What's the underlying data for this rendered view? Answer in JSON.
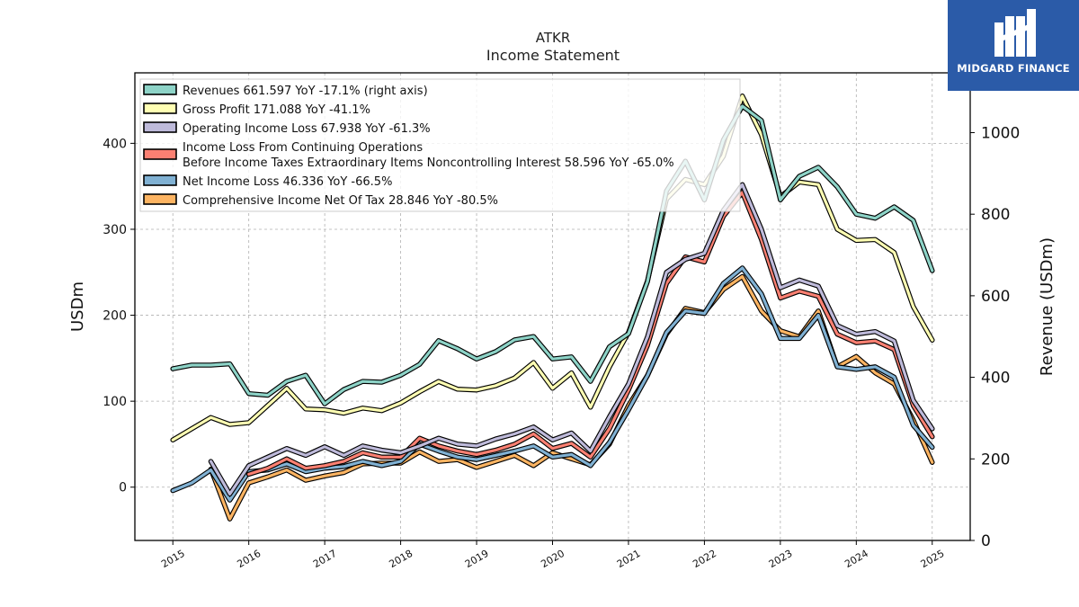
{
  "brand": {
    "logo_text": "MIDGARD FINANCE"
  },
  "chart_data": {
    "type": "line",
    "ticker": "ATKR",
    "title": "Income Statement",
    "ylabel_left": "USDm",
    "ylabel_right": "Revenue (USDm)",
    "grid": true,
    "legend_position": "top-left",
    "ylim_left": [
      -62,
      482
    ],
    "ylim_right": [
      0,
      1146.6
    ],
    "yticks_left": [
      0,
      100,
      200,
      300,
      400
    ],
    "yticks_right": [
      0,
      200,
      400,
      600,
      800,
      1000
    ],
    "x_ticks": [
      "2015",
      "2016",
      "2017",
      "2018",
      "2019",
      "2020",
      "2021",
      "2022",
      "2023",
      "2024",
      "2025"
    ],
    "x_start_year": 2015,
    "xlim_years": [
      2014.5,
      2025.5
    ],
    "series": [
      {
        "name": "Revenues",
        "legend": "Revenues  661.597 YoY -17.1% (right axis)",
        "axis": "right",
        "color": "#8dd3c7",
        "points": [
          [
            2015.0,
            421
          ],
          [
            2015.25,
            430
          ],
          [
            2015.5,
            430
          ],
          [
            2015.75,
            433
          ],
          [
            2016.0,
            360
          ],
          [
            2016.25,
            356
          ],
          [
            2016.5,
            390
          ],
          [
            2016.75,
            405
          ],
          [
            2017.0,
            335
          ],
          [
            2017.25,
            370
          ],
          [
            2017.5,
            390
          ],
          [
            2017.75,
            388
          ],
          [
            2018.0,
            405
          ],
          [
            2018.25,
            432
          ],
          [
            2018.5,
            490
          ],
          [
            2018.75,
            470
          ],
          [
            2019.0,
            445
          ],
          [
            2019.25,
            463
          ],
          [
            2019.5,
            492
          ],
          [
            2019.75,
            500
          ],
          [
            2020.0,
            445
          ],
          [
            2020.25,
            450
          ],
          [
            2020.5,
            390
          ],
          [
            2020.75,
            475
          ],
          [
            2021.0,
            507
          ],
          [
            2021.25,
            635
          ],
          [
            2021.5,
            857
          ],
          [
            2021.75,
            930
          ],
          [
            2022.0,
            835
          ],
          [
            2022.25,
            982
          ],
          [
            2022.5,
            1065
          ],
          [
            2022.75,
            1030
          ],
          [
            2023.0,
            835
          ],
          [
            2023.25,
            893
          ],
          [
            2023.5,
            915
          ],
          [
            2023.75,
            867
          ],
          [
            2024.0,
            800
          ],
          [
            2024.25,
            790
          ],
          [
            2024.5,
            818
          ],
          [
            2024.75,
            785
          ],
          [
            2025.0,
            661.597
          ]
        ]
      },
      {
        "name": "Gross Profit",
        "legend": "Gross Profit  171.088 YoY -41.1%",
        "axis": "left",
        "color": "#ffffb3",
        "points": [
          [
            2015.0,
            55
          ],
          [
            2015.25,
            68
          ],
          [
            2015.5,
            81
          ],
          [
            2015.75,
            73
          ],
          [
            2016.0,
            75
          ],
          [
            2016.25,
            95
          ],
          [
            2016.5,
            115
          ],
          [
            2016.75,
            91
          ],
          [
            2017.0,
            90
          ],
          [
            2017.25,
            86
          ],
          [
            2017.5,
            92
          ],
          [
            2017.75,
            89
          ],
          [
            2018.0,
            98
          ],
          [
            2018.25,
            111
          ],
          [
            2018.5,
            123
          ],
          [
            2018.75,
            114
          ],
          [
            2019.0,
            113
          ],
          [
            2019.25,
            118
          ],
          [
            2019.5,
            127
          ],
          [
            2019.75,
            145
          ],
          [
            2020.0,
            115
          ],
          [
            2020.25,
            133
          ],
          [
            2020.5,
            93
          ],
          [
            2020.75,
            140
          ],
          [
            2021.0,
            180
          ],
          [
            2021.25,
            240
          ],
          [
            2021.5,
            335
          ],
          [
            2021.75,
            358
          ],
          [
            2022.0,
            352
          ],
          [
            2022.25,
            385
          ],
          [
            2022.5,
            455
          ],
          [
            2022.75,
            410
          ],
          [
            2023.0,
            338
          ],
          [
            2023.25,
            355
          ],
          [
            2023.5,
            352
          ],
          [
            2023.75,
            300
          ],
          [
            2024.0,
            287
          ],
          [
            2024.25,
            288
          ],
          [
            2024.5,
            273
          ],
          [
            2024.75,
            210
          ],
          [
            2025.0,
            171.088
          ]
        ]
      },
      {
        "name": "Operating Income Loss",
        "legend": "Operating Income Loss  67.938 YoY -61.3%",
        "axis": "left",
        "color": "#bebada",
        "points": [
          [
            2015.5,
            30
          ],
          [
            2015.75,
            -8
          ],
          [
            2016.0,
            25
          ],
          [
            2016.25,
            35
          ],
          [
            2016.5,
            45
          ],
          [
            2016.75,
            37
          ],
          [
            2017.0,
            47
          ],
          [
            2017.25,
            37
          ],
          [
            2017.5,
            48
          ],
          [
            2017.75,
            43
          ],
          [
            2018.0,
            40
          ],
          [
            2018.25,
            48
          ],
          [
            2018.5,
            57
          ],
          [
            2018.75,
            50
          ],
          [
            2019.0,
            48
          ],
          [
            2019.25,
            56
          ],
          [
            2019.5,
            62
          ],
          [
            2019.75,
            70
          ],
          [
            2020.0,
            55
          ],
          [
            2020.25,
            63
          ],
          [
            2020.5,
            42
          ],
          [
            2020.75,
            82
          ],
          [
            2021.0,
            120
          ],
          [
            2021.25,
            175
          ],
          [
            2021.5,
            250
          ],
          [
            2021.75,
            265
          ],
          [
            2022.0,
            272
          ],
          [
            2022.25,
            322
          ],
          [
            2022.5,
            352
          ],
          [
            2022.75,
            300
          ],
          [
            2023.0,
            232
          ],
          [
            2023.25,
            241
          ],
          [
            2023.5,
            234
          ],
          [
            2023.75,
            188
          ],
          [
            2024.0,
            178
          ],
          [
            2024.25,
            181
          ],
          [
            2024.5,
            170
          ],
          [
            2024.75,
            101
          ],
          [
            2025.0,
            67.938
          ]
        ]
      },
      {
        "name": "Income Loss From Continuing Operations Before Income Taxes Extraordinary Items Noncontrolling Interest",
        "legend": "Income Loss From Continuing Operations\nBefore Income Taxes Extraordinary Items Noncontrolling Interest  58.596 YoY -65.0%",
        "axis": "left",
        "color": "#fb8072",
        "points": [
          [
            2016.0,
            15
          ],
          [
            2016.25,
            22
          ],
          [
            2016.5,
            33
          ],
          [
            2016.75,
            22
          ],
          [
            2017.0,
            25
          ],
          [
            2017.25,
            30
          ],
          [
            2017.5,
            40
          ],
          [
            2017.75,
            35
          ],
          [
            2018.0,
            35
          ],
          [
            2018.25,
            57
          ],
          [
            2018.5,
            48
          ],
          [
            2018.75,
            42
          ],
          [
            2019.0,
            38
          ],
          [
            2019.25,
            43
          ],
          [
            2019.5,
            50
          ],
          [
            2019.75,
            62
          ],
          [
            2020.0,
            45
          ],
          [
            2020.25,
            51
          ],
          [
            2020.5,
            35
          ],
          [
            2020.75,
            68
          ],
          [
            2021.0,
            113
          ],
          [
            2021.25,
            165
          ],
          [
            2021.5,
            237
          ],
          [
            2021.75,
            268
          ],
          [
            2022.0,
            262
          ],
          [
            2022.25,
            315
          ],
          [
            2022.5,
            343
          ],
          [
            2022.75,
            288
          ],
          [
            2023.0,
            220
          ],
          [
            2023.25,
            228
          ],
          [
            2023.5,
            222
          ],
          [
            2023.75,
            178
          ],
          [
            2024.0,
            168
          ],
          [
            2024.25,
            170
          ],
          [
            2024.5,
            160
          ],
          [
            2024.75,
            95
          ],
          [
            2025.0,
            58.596
          ]
        ]
      },
      {
        "name": "Net Income Loss",
        "legend": "Net Income Loss  46.336 YoY -66.5%",
        "axis": "left",
        "color": "#80b1d3",
        "points": [
          [
            2015.0,
            -4
          ],
          [
            2015.25,
            5
          ],
          [
            2015.5,
            20
          ],
          [
            2015.75,
            -15
          ],
          [
            2016.0,
            18
          ],
          [
            2016.25,
            20
          ],
          [
            2016.5,
            27
          ],
          [
            2016.75,
            18
          ],
          [
            2017.0,
            22
          ],
          [
            2017.25,
            24
          ],
          [
            2017.5,
            30
          ],
          [
            2017.75,
            25
          ],
          [
            2018.0,
            30
          ],
          [
            2018.25,
            50
          ],
          [
            2018.5,
            42
          ],
          [
            2018.75,
            35
          ],
          [
            2019.0,
            32
          ],
          [
            2019.25,
            37
          ],
          [
            2019.5,
            42
          ],
          [
            2019.75,
            48
          ],
          [
            2020.0,
            35
          ],
          [
            2020.25,
            38
          ],
          [
            2020.5,
            25
          ],
          [
            2020.75,
            52
          ],
          [
            2021.0,
            90
          ],
          [
            2021.25,
            130
          ],
          [
            2021.5,
            180
          ],
          [
            2021.75,
            205
          ],
          [
            2022.0,
            202
          ],
          [
            2022.25,
            237
          ],
          [
            2022.5,
            255
          ],
          [
            2022.75,
            225
          ],
          [
            2023.0,
            173
          ],
          [
            2023.25,
            173
          ],
          [
            2023.5,
            200
          ],
          [
            2023.75,
            140
          ],
          [
            2024.0,
            137
          ],
          [
            2024.25,
            140
          ],
          [
            2024.5,
            128
          ],
          [
            2024.75,
            72
          ],
          [
            2025.0,
            46.336
          ]
        ]
      },
      {
        "name": "Comprehensive Income Net Of Tax",
        "legend": "Comprehensive Income Net Of Tax  28.846 YoY -80.5%",
        "axis": "left",
        "color": "#fdb462",
        "points": [
          [
            2015.5,
            21
          ],
          [
            2015.75,
            -37
          ],
          [
            2016.0,
            5
          ],
          [
            2016.25,
            12
          ],
          [
            2016.5,
            20
          ],
          [
            2016.75,
            8
          ],
          [
            2017.0,
            13
          ],
          [
            2017.25,
            17
          ],
          [
            2017.5,
            27
          ],
          [
            2017.75,
            28
          ],
          [
            2018.0,
            28
          ],
          [
            2018.25,
            41
          ],
          [
            2018.5,
            30
          ],
          [
            2018.75,
            32
          ],
          [
            2019.0,
            23
          ],
          [
            2019.25,
            30
          ],
          [
            2019.5,
            37
          ],
          [
            2019.75,
            25
          ],
          [
            2020.0,
            40
          ],
          [
            2020.25,
            33
          ],
          [
            2020.5,
            26
          ],
          [
            2020.75,
            50
          ],
          [
            2021.0,
            95
          ],
          [
            2021.25,
            130
          ],
          [
            2021.5,
            178
          ],
          [
            2021.75,
            208
          ],
          [
            2022.0,
            203
          ],
          [
            2022.25,
            230
          ],
          [
            2022.5,
            245
          ],
          [
            2022.75,
            205
          ],
          [
            2023.0,
            182
          ],
          [
            2023.25,
            175
          ],
          [
            2023.5,
            205
          ],
          [
            2023.75,
            140
          ],
          [
            2024.0,
            152
          ],
          [
            2024.25,
            133
          ],
          [
            2024.5,
            120
          ],
          [
            2024.75,
            78
          ],
          [
            2025.0,
            28.846
          ]
        ]
      }
    ]
  }
}
